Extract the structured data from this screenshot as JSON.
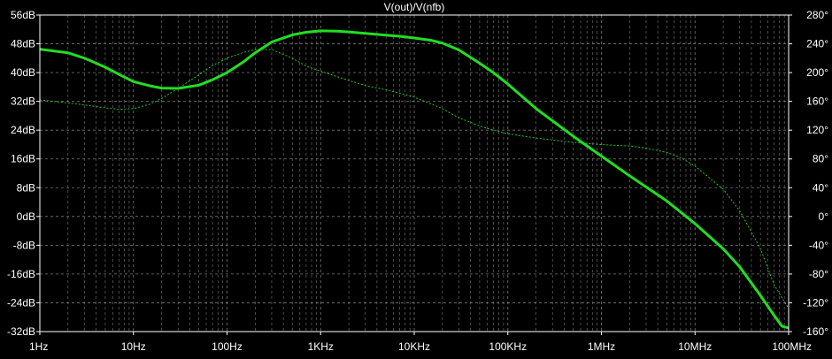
{
  "chart_data": {
    "type": "line",
    "title": "V(out)/V(nfb)",
    "x_scale": "log",
    "x_range_hz": [
      1,
      100000000
    ],
    "x_ticks": [
      {
        "value": 1,
        "label": "1Hz"
      },
      {
        "value": 10,
        "label": "10Hz"
      },
      {
        "value": 100,
        "label": "100Hz"
      },
      {
        "value": 1000,
        "label": "1KHz"
      },
      {
        "value": 10000,
        "label": "10KHz"
      },
      {
        "value": 100000,
        "label": "100KHz"
      },
      {
        "value": 1000000,
        "label": "1MHz"
      },
      {
        "value": 10000000,
        "label": "10MHz"
      },
      {
        "value": 100000000,
        "label": "100MHz"
      }
    ],
    "y_left_range_db": [
      -32,
      56
    ],
    "y_left_ticks": [
      {
        "value": 56,
        "label": "56dB"
      },
      {
        "value": 48,
        "label": "48dB"
      },
      {
        "value": 40,
        "label": "40dB"
      },
      {
        "value": 32,
        "label": "32dB"
      },
      {
        "value": 24,
        "label": "24dB"
      },
      {
        "value": 16,
        "label": "16dB"
      },
      {
        "value": 8,
        "label": "8dB"
      },
      {
        "value": 0,
        "label": "0dB"
      },
      {
        "value": -8,
        "label": "-8dB"
      },
      {
        "value": -16,
        "label": "-16dB"
      },
      {
        "value": -24,
        "label": "-24dB"
      },
      {
        "value": -32,
        "label": "-32dB"
      }
    ],
    "y_right_range_deg": [
      -160,
      280
    ],
    "y_right_ticks": [
      {
        "value": 280,
        "label": "280°"
      },
      {
        "value": 240,
        "label": "240°"
      },
      {
        "value": 200,
        "label": "200°"
      },
      {
        "value": 160,
        "label": "160°"
      },
      {
        "value": 120,
        "label": "120°"
      },
      {
        "value": 80,
        "label": "80°"
      },
      {
        "value": 40,
        "label": "40°"
      },
      {
        "value": 0,
        "label": "0°"
      },
      {
        "value": -40,
        "label": "-40°"
      },
      {
        "value": -80,
        "label": "-80°"
      },
      {
        "value": -120,
        "label": "-120°"
      },
      {
        "value": -160,
        "label": "-160°"
      }
    ],
    "grid": true,
    "colors": {
      "background": "#000000",
      "grid": "#7a7a7a",
      "axis": "#ffffff",
      "trace": "#22dd22"
    },
    "series": [
      {
        "quantity": "magnitude",
        "axis": "left",
        "style": "solid",
        "points": [
          [
            1,
            46.5
          ],
          [
            2,
            45.5
          ],
          [
            3,
            44
          ],
          [
            5,
            41.5
          ],
          [
            7,
            39.5
          ],
          [
            10,
            37.5
          ],
          [
            15,
            36.3
          ],
          [
            20,
            35.7
          ],
          [
            30,
            35.6
          ],
          [
            50,
            36.5
          ],
          [
            70,
            38
          ],
          [
            100,
            40
          ],
          [
            150,
            43
          ],
          [
            200,
            45.5
          ],
          [
            300,
            48.5
          ],
          [
            500,
            50.5
          ],
          [
            700,
            51.2
          ],
          [
            1000,
            51.6
          ],
          [
            1500,
            51.5
          ],
          [
            2000,
            51.3
          ],
          [
            3000,
            50.9
          ],
          [
            5000,
            50.4
          ],
          [
            7000,
            50.1
          ],
          [
            10000,
            49.6
          ],
          [
            15000,
            49
          ],
          [
            20000,
            48.2
          ],
          [
            30000,
            46.3
          ],
          [
            50000,
            42.6
          ],
          [
            70000,
            40
          ],
          [
            100000,
            36.8
          ],
          [
            200000,
            30
          ],
          [
            500000,
            22.3
          ],
          [
            1000000,
            16.8
          ],
          [
            2000000,
            11.3
          ],
          [
            5000000,
            4.3
          ],
          [
            10000000,
            -2
          ],
          [
            20000000,
            -9
          ],
          [
            30000000,
            -14
          ],
          [
            50000000,
            -22
          ],
          [
            70000000,
            -27.5
          ],
          [
            85000000,
            -30.5
          ],
          [
            100000000,
            -31
          ]
        ]
      },
      {
        "quantity": "phase",
        "axis": "right",
        "style": "dashed",
        "points": [
          [
            1,
            162
          ],
          [
            2,
            158
          ],
          [
            3,
            155
          ],
          [
            5,
            151
          ],
          [
            7,
            149
          ],
          [
            10,
            150
          ],
          [
            15,
            156
          ],
          [
            20,
            164
          ],
          [
            30,
            178
          ],
          [
            50,
            197
          ],
          [
            70,
            210
          ],
          [
            100,
            220
          ],
          [
            150,
            228
          ],
          [
            200,
            232
          ],
          [
            300,
            232
          ],
          [
            500,
            220
          ],
          [
            700,
            209
          ],
          [
            1000,
            202
          ],
          [
            2000,
            189
          ],
          [
            3000,
            182
          ],
          [
            5000,
            176
          ],
          [
            10000,
            166
          ],
          [
            20000,
            150
          ],
          [
            30000,
            137
          ],
          [
            50000,
            126
          ],
          [
            70000,
            120
          ],
          [
            100000,
            115
          ],
          [
            200000,
            109
          ],
          [
            500000,
            103
          ],
          [
            1000000,
            100
          ],
          [
            2000000,
            98
          ],
          [
            3000000,
            95
          ],
          [
            5000000,
            89
          ],
          [
            7000000,
            82
          ],
          [
            10000000,
            70
          ],
          [
            20000000,
            38
          ],
          [
            30000000,
            8
          ],
          [
            50000000,
            -45
          ],
          [
            70000000,
            -95
          ],
          [
            100000000,
            -128
          ]
        ]
      }
    ]
  }
}
